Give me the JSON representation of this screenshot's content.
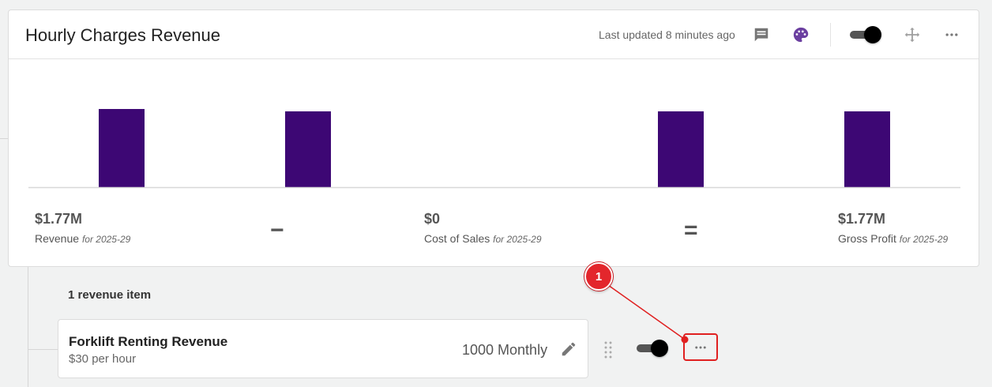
{
  "header": {
    "title": "Hourly Charges Revenue",
    "last_updated": "Last updated 8 minutes ago",
    "icons": [
      "comment-icon",
      "palette-icon",
      "move-icon",
      "more-horizontal-icon"
    ],
    "toggle_on": true
  },
  "chart_data": {
    "type": "bar",
    "bar_color": "#3d0774",
    "categories": [
      "Revenue",
      "Cost of Sales",
      "Gross Profit"
    ],
    "values": [
      1.77,
      0,
      1.77
    ],
    "unit": "$M"
  },
  "summary": {
    "revenue": {
      "value": "$1.77M",
      "label": "Revenue",
      "period": "for 2025-29"
    },
    "minus_sign": "−",
    "cost_of_sales": {
      "value": "$0",
      "label": "Cost of Sales",
      "period": "for 2025-29"
    },
    "equals_sign": "=",
    "gross_profit": {
      "value": "$1.77M",
      "label": "Gross Profit",
      "period": "for 2025-29"
    }
  },
  "items": {
    "count_label": "1 revenue item",
    "list": [
      {
        "name": "Forklift Renting Revenue",
        "price": "$30 per hour",
        "amount": "1000 Monthly",
        "toggle_on": true
      }
    ]
  },
  "annotation": {
    "number": "1",
    "color": "#e3262c"
  }
}
